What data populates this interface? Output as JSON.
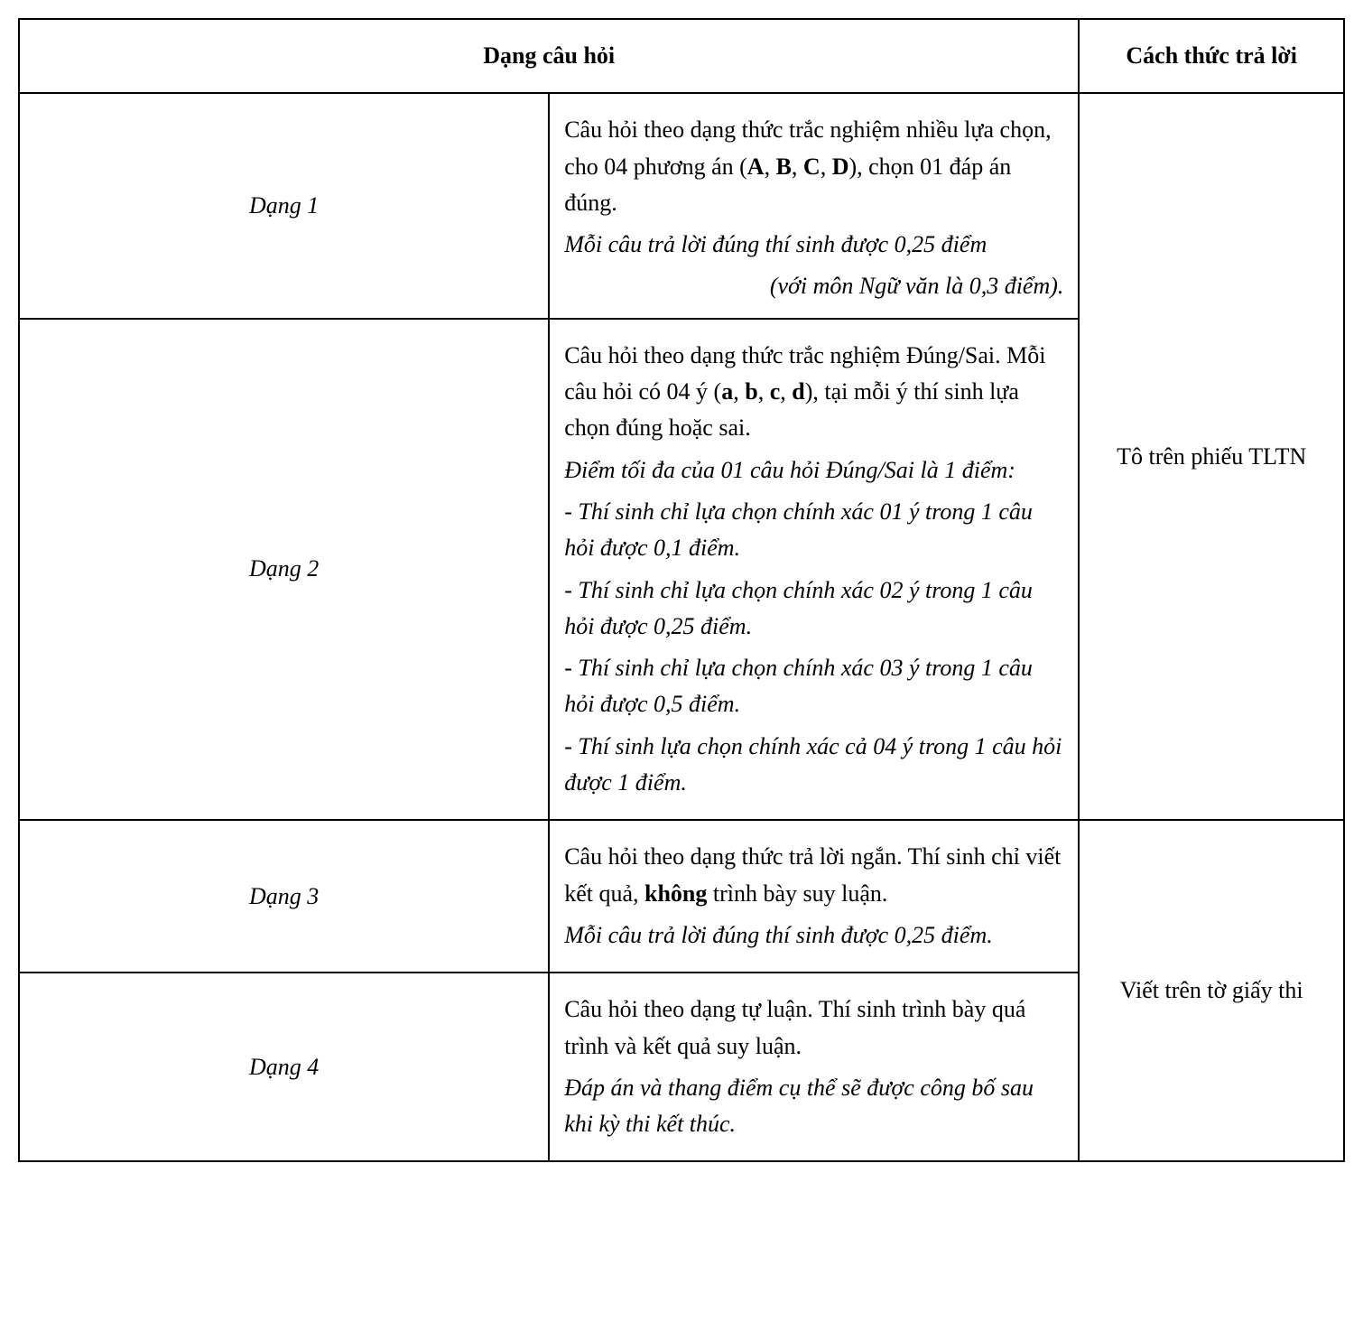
{
  "table": {
    "border_color": "#000000",
    "background_color": "#ffffff",
    "text_color": "#000000",
    "font_family": "Times New Roman",
    "base_fontsize_pt": 20,
    "columns": [
      {
        "key": "label",
        "width_pct": 10,
        "align": "center",
        "italic": true
      },
      {
        "key": "desc",
        "width_pct": 70,
        "align": "left"
      },
      {
        "key": "answer",
        "width_pct": 20,
        "align": "center"
      }
    ],
    "header": {
      "question_type": "Dạng câu hỏi",
      "answer_method": "Cách thức trả lời"
    },
    "groups": [
      {
        "answer_method": "Tô trên phiếu TLTN",
        "rows": [
          {
            "label": "Dạng 1",
            "intro_pre": "Câu hỏi theo dạng thức trắc nghiệm nhiều lựa chọn, cho 04 phương án (",
            "intro_bold_A": "A",
            "sep1": ", ",
            "intro_bold_B": "B",
            "sep2": ", ",
            "intro_bold_C": "C",
            "sep3": ", ",
            "intro_bold_D": "D",
            "intro_post": "), chọn 01 đáp án đúng.",
            "note_italic": "Mỗi câu trả lời đúng thí sinh được 0,25 điểm",
            "right_italic": "(với môn Ngữ văn là 0,3 điểm)."
          },
          {
            "label": "Dạng 2",
            "intro_pre": "Câu hỏi theo dạng thức trắc nghiệm Đúng/Sai. Mỗi câu hỏi có 04 ý (",
            "intro_bold_a": "a",
            "sep1": ", ",
            "intro_bold_b": "b",
            "sep2": ", ",
            "intro_bold_c": "c",
            "sep3": ", ",
            "intro_bold_d": "d",
            "intro_post": "), tại mỗi ý thí sinh lựa chọn đúng hoặc sai.",
            "max_note": "Điểm tối đa của 01 câu hỏi Đúng/Sai là 1 điểm:",
            "bullets": [
              "- Thí sinh chỉ lựa chọn chính xác 01 ý trong 1 câu hỏi được 0,1 điểm.",
              "- Thí sinh chỉ lựa chọn chính xác 02 ý trong 1 câu hỏi được 0,25 điểm.",
              "- Thí sinh chỉ lựa chọn chính xác 03 ý trong 1 câu hỏi được 0,5 điểm.",
              "- Thí sinh lựa chọn chính xác cả 04 ý trong 1 câu hỏi được 1 điểm."
            ]
          }
        ]
      },
      {
        "answer_method": "Viết trên tờ giấy thi",
        "rows": [
          {
            "label": "Dạng 3",
            "intro_pre": "Câu hỏi theo dạng thức trả lời ngắn. Thí sinh chỉ viết kết quả, ",
            "intro_bold": "không",
            "intro_post": " trình bày suy luận.",
            "note_italic": "Mỗi câu trả lời đúng thí sinh được 0,25 điểm."
          },
          {
            "label": "Dạng 4",
            "intro": "Câu hỏi theo dạng tự luận. Thí sinh trình bày quá trình và kết quả suy luận.",
            "note_italic": "Đáp án và thang điểm cụ thể sẽ được công bố sau khi kỳ thi kết thúc."
          }
        ]
      }
    ]
  }
}
